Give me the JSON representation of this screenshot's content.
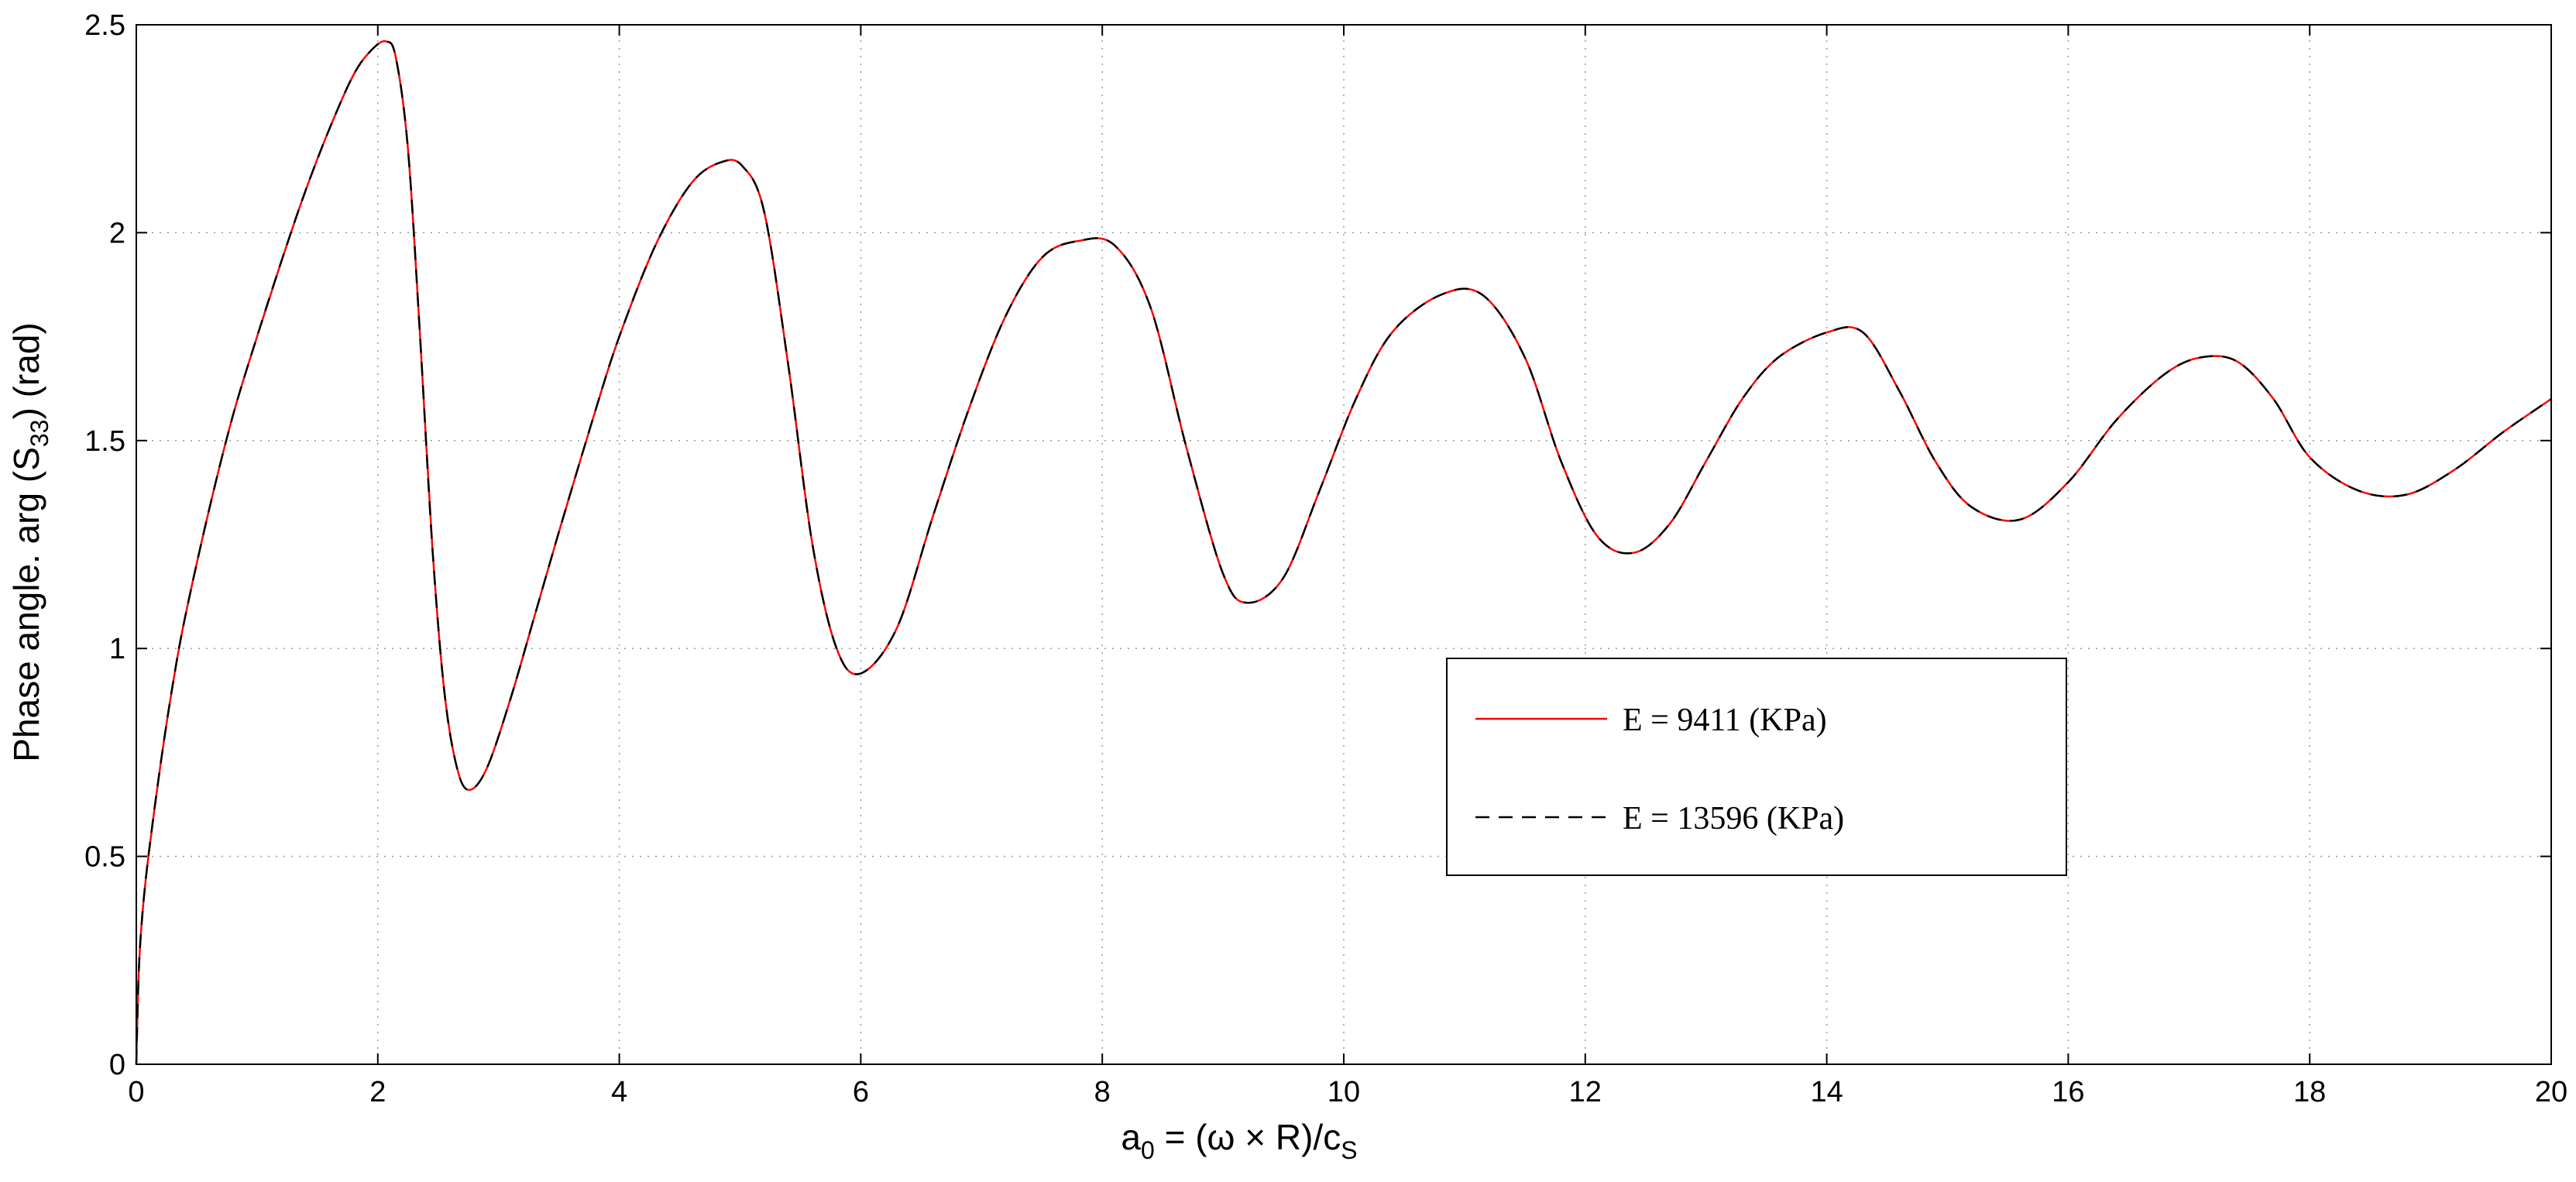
{
  "chart_data": {
    "type": "line",
    "xlabel": {
      "base": "a",
      "sub": "0",
      "mid": " = (ω × R)/c",
      "sub2": "S"
    },
    "ylabel": {
      "pre": "Phase angle. arg (S",
      "sub": "33",
      "post": ") (rad)"
    },
    "xlim": [
      0,
      20
    ],
    "ylim": [
      0,
      2.5
    ],
    "x_ticks": [
      0,
      2,
      4,
      6,
      8,
      10,
      12,
      14,
      16,
      18,
      20
    ],
    "y_ticks": [
      0,
      0.5,
      1,
      1.5,
      2,
      2.5
    ],
    "x_tick_labels": [
      "0",
      "2",
      "4",
      "6",
      "8",
      "10",
      "12",
      "14",
      "16",
      "18",
      "20"
    ],
    "y_tick_labels": [
      "0",
      "0.5",
      "1",
      "1.5",
      "2",
      "2.5"
    ],
    "grid": true,
    "legend_position": "center-right",
    "series": [
      {
        "name": "E = 9411 (KPa)",
        "color": "#ff0000",
        "style": "solid"
      },
      {
        "name": "E = 13596 (KPa)",
        "color": "#000000",
        "style": "dashed"
      }
    ],
    "x": [
      0,
      0.02,
      0.05,
      0.1,
      0.2,
      0.3,
      0.4,
      0.6,
      0.8,
      1.0,
      1.2,
      1.4,
      1.6,
      1.8,
      1.95,
      2.07,
      2.15,
      2.25,
      2.35,
      2.45,
      2.55,
      2.65,
      2.75,
      2.9,
      3.1,
      3.3,
      3.5,
      3.8,
      4.0,
      4.3,
      4.6,
      4.85,
      5.02,
      5.2,
      5.4,
      5.6,
      5.8,
      6.0,
      6.3,
      6.6,
      6.9,
      7.2,
      7.5,
      7.8,
      8.1,
      8.4,
      8.7,
      9.0,
      9.2,
      9.5,
      9.8,
      10.1,
      10.4,
      10.8,
      11.15,
      11.5,
      11.8,
      12.1,
      12.4,
      12.7,
      13.0,
      13.3,
      13.6,
      14.0,
      14.3,
      14.6,
      14.9,
      15.2,
      15.6,
      16.0,
      16.4,
      16.8,
      17.1,
      17.4,
      17.7,
      18.0,
      18.4,
      18.8,
      19.2,
      19.6,
      20.0
    ],
    "values": [
      0,
      0.22,
      0.36,
      0.5,
      0.72,
      0.91,
      1.07,
      1.33,
      1.56,
      1.75,
      1.93,
      2.1,
      2.25,
      2.38,
      2.44,
      2.46,
      2.42,
      2.2,
      1.75,
      1.25,
      0.9,
      0.72,
      0.66,
      0.71,
      0.88,
      1.08,
      1.28,
      1.57,
      1.75,
      1.97,
      2.12,
      2.17,
      2.16,
      2.05,
      1.68,
      1.25,
      1.0,
      0.94,
      1.05,
      1.32,
      1.58,
      1.8,
      1.94,
      1.98,
      1.97,
      1.82,
      1.48,
      1.18,
      1.11,
      1.17,
      1.38,
      1.6,
      1.76,
      1.85,
      1.85,
      1.7,
      1.45,
      1.27,
      1.23,
      1.3,
      1.45,
      1.6,
      1.7,
      1.76,
      1.76,
      1.62,
      1.45,
      1.34,
      1.31,
      1.4,
      1.55,
      1.66,
      1.7,
      1.69,
      1.6,
      1.46,
      1.38,
      1.37,
      1.43,
      1.52,
      1.6
    ]
  }
}
